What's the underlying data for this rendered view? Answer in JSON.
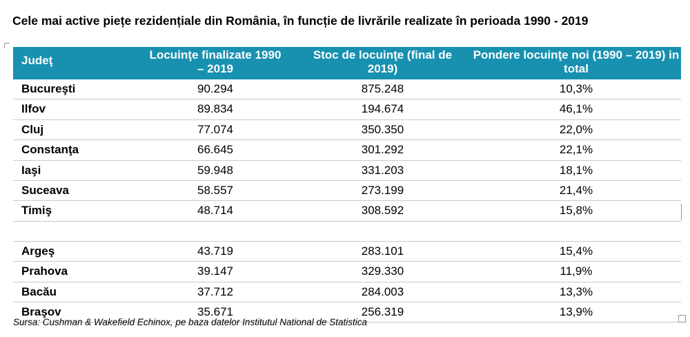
{
  "title": "Cele mai active piețe rezidențiale din România, în funcție de livrările realizate în perioada 1990 - 2019",
  "table": {
    "headers": [
      "Judeţ",
      "Locuinţe finalizate 1990 – 2019",
      "Stoc de locuinţe (final de 2019)",
      "Pondere locuinţe noi (1990 – 2019) in total"
    ],
    "rows": [
      [
        "Bucureşti",
        "90.294",
        "875.248",
        "10,3%"
      ],
      [
        "Ilfov",
        "89.834",
        "194.674",
        "46,1%"
      ],
      [
        "Cluj",
        "77.074",
        "350.350",
        "22,0%"
      ],
      [
        "Constanţa",
        "66.645",
        "301.292",
        "22,1%"
      ],
      [
        "Iaşi",
        "59.948",
        "331.203",
        "18,1%"
      ],
      [
        "Suceava",
        "58.557",
        "273.199",
        "21,4%"
      ],
      [
        "Timiş",
        "48.714",
        "308.592",
        "15,8%"
      ],
      [
        "Argeş",
        "43.719",
        "283.101",
        "15,4%"
      ],
      [
        "Prahova",
        "39.147",
        "329.330",
        "11,9%"
      ],
      [
        "Bacău",
        "37.712",
        "284.003",
        "13,3%"
      ],
      [
        "Braşov",
        "35.671",
        "256.319",
        "13,9%"
      ]
    ]
  },
  "source": "Sursa: Cushman & Wakefield Echinox, pe baza datelor Institutul National de Statistica",
  "colors": {
    "header_bg": "#1891b0",
    "header_text": "#ffffff",
    "row_rule": "#c9c9c9"
  }
}
